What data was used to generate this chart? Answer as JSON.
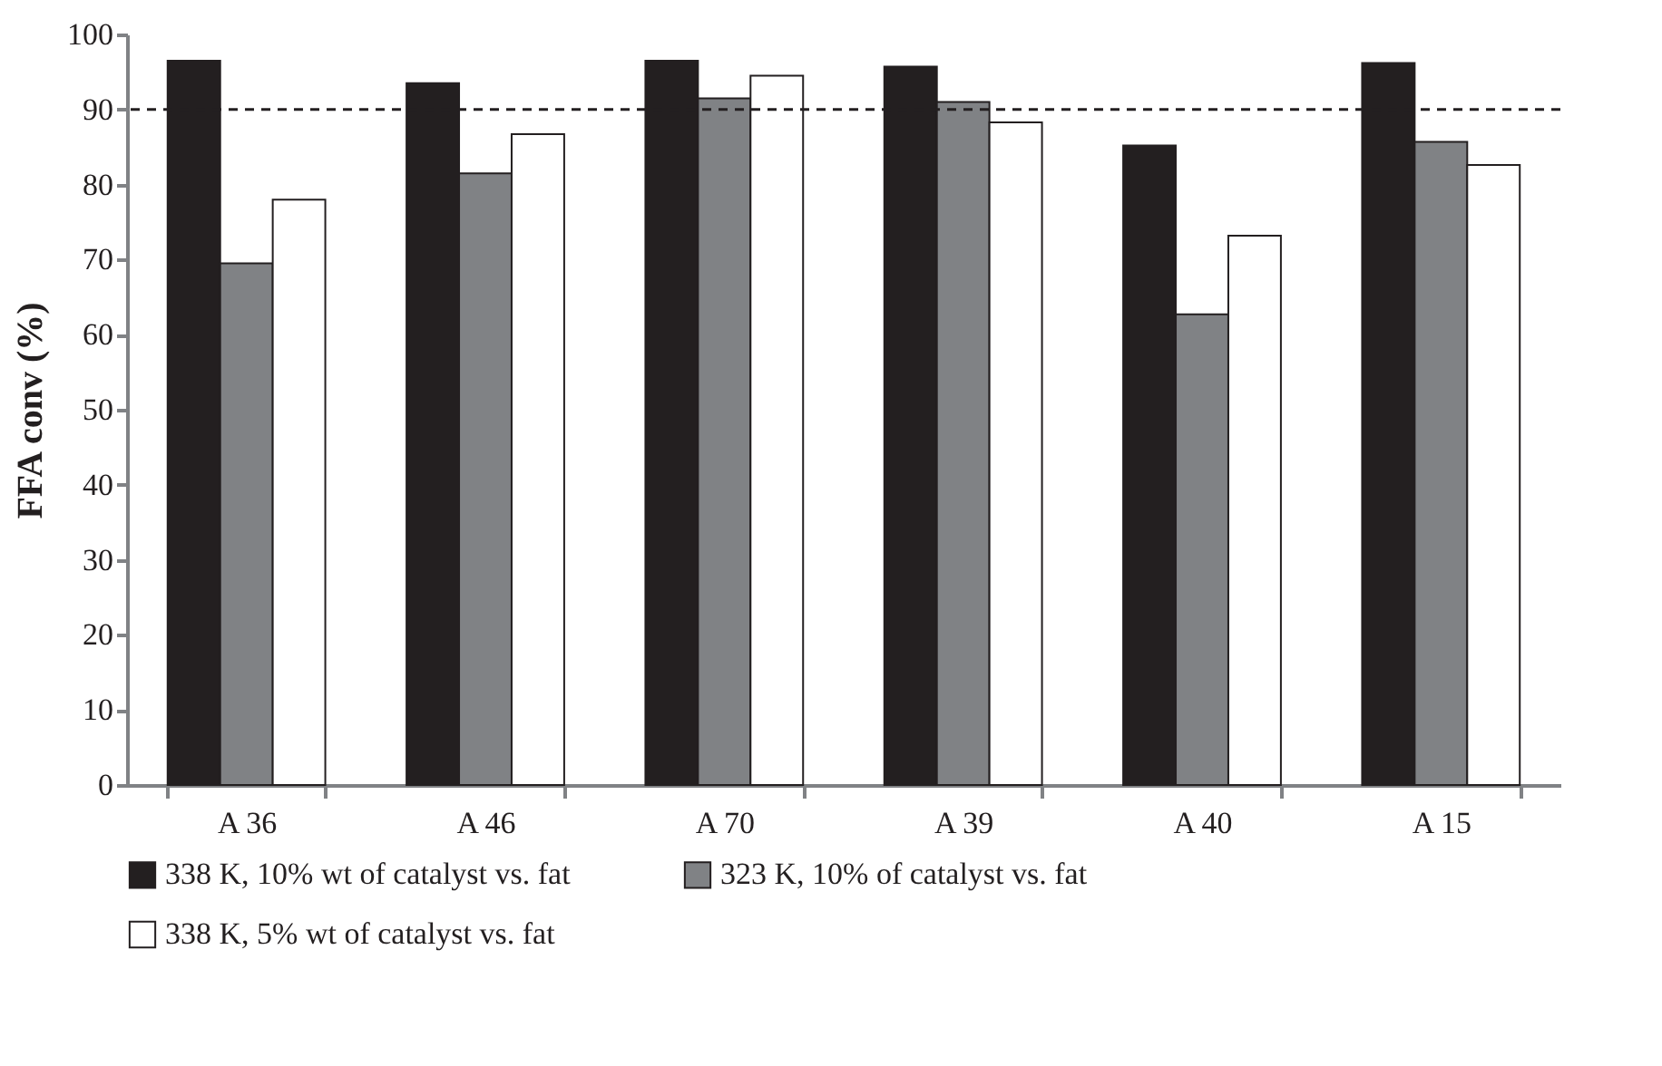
{
  "chart_data": {
    "type": "bar",
    "ylabel": "FFA conv (%)",
    "categories": [
      "A 36",
      "A 46",
      "A 70",
      "A 39",
      "A 40",
      "A 15"
    ],
    "series": [
      {
        "name": "338 K, 10% wt of catalyst vs. fat",
        "color": "#231f20",
        "values": [
          96.5,
          93.5,
          96.5,
          95.7,
          85.2,
          96.2
        ]
      },
      {
        "name": "323 K, 10% of catalyst vs. fat",
        "color": "#808285",
        "values": [
          69.5,
          81.5,
          91.5,
          91,
          62.7,
          85.7
        ]
      },
      {
        "name": "338 K, 5% wt of catalyst vs. fat",
        "color": "#ffffff",
        "values": [
          78,
          86.7,
          94.5,
          88.3,
          73.2,
          82.6
        ]
      }
    ],
    "ylim": [
      0,
      100
    ],
    "yticks": [
      0,
      10,
      20,
      30,
      40,
      50,
      60,
      70,
      80,
      90,
      100
    ],
    "ref_lines": [
      {
        "axis": "y",
        "value": 90,
        "line_style": "dashed",
        "color": "#231f20"
      }
    ],
    "grid": false,
    "legend": "bottom"
  }
}
